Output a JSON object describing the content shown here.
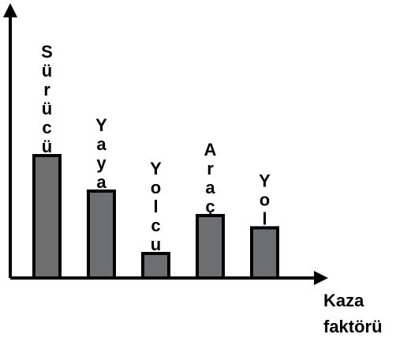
{
  "chart_data": {
    "type": "bar",
    "categories": [
      "Sürücü",
      "Yaya",
      "Yolcu",
      "Araç",
      "Yol"
    ],
    "values": [
      5.0,
      3.55,
      1.0,
      2.55,
      2.05
    ],
    "xlabel_line1": "Kaza",
    "xlabel_line2": "faktörü",
    "ylabel": "",
    "title": "",
    "ylim": [
      0,
      7
    ],
    "grid": false,
    "legend": "none",
    "colors": {
      "bar_fill": "#6d6e70",
      "bar_stroke": "#000000",
      "axis": "#000000"
    }
  }
}
